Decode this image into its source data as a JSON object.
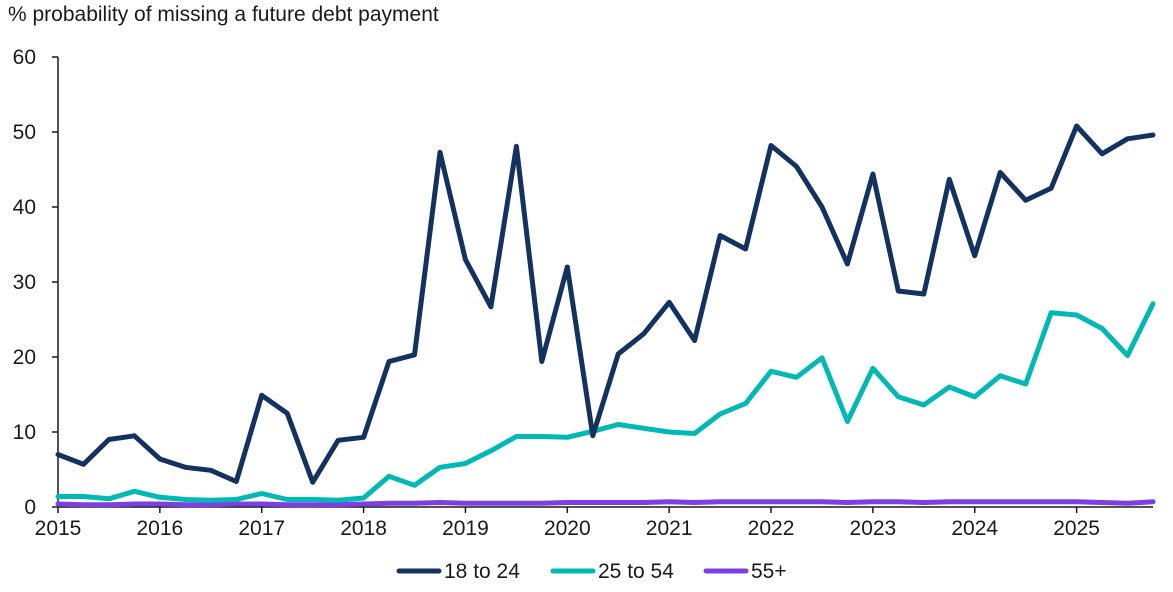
{
  "chart_data": {
    "type": "line",
    "title": "",
    "ylabel": "% probability of missing a future debt payment",
    "xlabel": "",
    "ylim": [
      0,
      60
    ],
    "yticks": [
      0,
      10,
      20,
      30,
      40,
      50,
      60
    ],
    "xlim": [
      2015,
      2025.75
    ],
    "xticks": [
      2015,
      2016,
      2017,
      2018,
      2019,
      2020,
      2021,
      2022,
      2023,
      2024,
      2025
    ],
    "grid": false,
    "legend_position": "bottom",
    "x": [
      2015.0,
      2015.25,
      2015.5,
      2015.75,
      2016.0,
      2016.25,
      2016.5,
      2016.75,
      2017.0,
      2017.25,
      2017.5,
      2017.75,
      2018.0,
      2018.25,
      2018.5,
      2018.75,
      2019.0,
      2019.25,
      2019.5,
      2019.75,
      2020.0,
      2020.25,
      2020.5,
      2020.75,
      2021.0,
      2021.25,
      2021.5,
      2021.75,
      2022.0,
      2022.25,
      2022.5,
      2022.75,
      2023.0,
      2023.25,
      2023.5,
      2023.75,
      2024.0,
      2024.25,
      2024.5,
      2024.75,
      2025.0,
      2025.25,
      2025.5,
      2025.75
    ],
    "series": [
      {
        "name": "18 to 24",
        "color": "#14325f",
        "values": [
          7.0,
          5.7,
          9.0,
          9.5,
          6.4,
          5.3,
          4.9,
          3.4,
          14.9,
          12.5,
          3.3,
          8.9,
          9.3,
          19.4,
          20.3,
          47.3,
          33.0,
          26.7,
          48.1,
          19.4,
          32.0,
          9.5,
          20.4,
          23.1,
          27.3,
          22.2,
          36.2,
          34.4,
          48.2,
          45.4,
          40.0,
          32.4,
          44.4,
          28.8,
          28.4,
          43.7,
          33.5,
          44.6,
          40.9,
          42.5,
          50.8,
          47.1,
          49.1,
          49.6
        ]
      },
      {
        "name": "25 to 54",
        "color": "#00b9b4",
        "values": [
          1.4,
          1.4,
          1.1,
          2.1,
          1.3,
          1.0,
          0.9,
          1.0,
          1.8,
          1.0,
          1.0,
          0.9,
          1.2,
          4.1,
          2.9,
          5.3,
          5.8,
          7.5,
          9.4,
          9.4,
          9.3,
          10.1,
          11.0,
          10.5,
          10.0,
          9.8,
          12.4,
          13.8,
          18.1,
          17.3,
          19.9,
          11.4,
          18.5,
          14.7,
          13.6,
          16.0,
          14.7,
          17.5,
          16.4,
          25.9,
          25.6,
          23.8,
          20.2,
          27.1
        ]
      },
      {
        "name": "55+",
        "color": "#7b3fe4",
        "values": [
          0.4,
          0.3,
          0.3,
          0.4,
          0.4,
          0.3,
          0.3,
          0.4,
          0.4,
          0.3,
          0.3,
          0.3,
          0.4,
          0.5,
          0.5,
          0.6,
          0.5,
          0.5,
          0.5,
          0.5,
          0.6,
          0.6,
          0.6,
          0.6,
          0.7,
          0.6,
          0.7,
          0.7,
          0.7,
          0.7,
          0.7,
          0.6,
          0.7,
          0.7,
          0.6,
          0.7,
          0.7,
          0.7,
          0.7,
          0.7,
          0.7,
          0.6,
          0.5,
          0.7
        ]
      }
    ]
  }
}
